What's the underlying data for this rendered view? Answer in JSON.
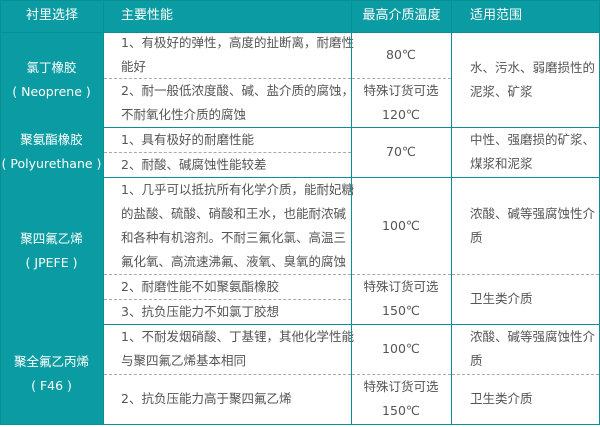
{
  "header": [
    "衬里选择",
    "主要性能",
    "最高介质温度",
    "适用范围"
  ],
  "rows": [
    {
      "lining": [
        "氯丁橡胶",
        "( Neoprene )"
      ],
      "perf": [
        [
          "1、有极好的弹性，高度的扯断离，耐磨性",
          "能好"
        ],
        [
          "2、耐一般低浓度酸、碱、盐介质的腐蚀，",
          "不耐氧化性介质的腐蚀"
        ]
      ],
      "temp": [
        [
          "80℃"
        ],
        [
          "特殊订货可选",
          "120℃"
        ]
      ],
      "range": [
        [
          "水、污水、弱磨损性的",
          "泥浆、矿浆"
        ]
      ]
    },
    {
      "lining": [
        "聚氨酯橡胶",
        "( Polyurethane )"
      ],
      "perf": [
        [
          "1、具有极好的耐磨性能"
        ],
        [
          "2、耐酸、碱腐蚀性能较差"
        ]
      ],
      "temp": [
        [
          "70℃"
        ]
      ],
      "range": [
        [
          "中性、强磨损的矿浆、",
          "煤浆和泥浆"
        ]
      ]
    },
    {
      "lining": [
        "聚四氟乙烯",
        "( JPEFE )"
      ],
      "perf": [
        [
          "1、几乎可以抵抗所有化学介质，能耐妃糖",
          "的盐酸、硫酸、硝酸和王水，也能耐浓碱",
          "和各种有机溶剂。不耐三氟化氯、高温三",
          "氟化氧、高流速沸氟、液氧、臭氧的腐蚀"
        ],
        [
          "2、耐磨性能不如聚氨酯橡胶"
        ],
        [
          "3、抗负压能力不如氯丁胶想"
        ]
      ],
      "temp": [
        [
          "100℃"
        ],
        [
          "特殊订货可选",
          "150℃"
        ]
      ],
      "range": [
        [
          "浓酸、碱等强腐蚀性介",
          "质"
        ],
        [
          "卫生类介质"
        ]
      ]
    },
    {
      "lining": [
        "聚全氟乙丙烯",
        "( F46 )"
      ],
      "perf": [
        [
          "1、不耐发烟硝酸、丁基锂，其他化学性能",
          "与聚四氟乙烯基本相同"
        ],
        [
          "2、抗负压能力高于聚四氟乙烯"
        ]
      ],
      "temp": [
        [
          "100℃"
        ],
        [
          "特殊订货可选",
          "150℃"
        ]
      ],
      "range": [
        [
          "浓酸、碱等强腐蚀性介",
          "质"
        ],
        [
          "卫生类介质"
        ]
      ]
    }
  ],
  "colors": {
    "header_bg": "#0a9ca2",
    "header_text": "#ffffff",
    "body_text": "#555555"
  }
}
